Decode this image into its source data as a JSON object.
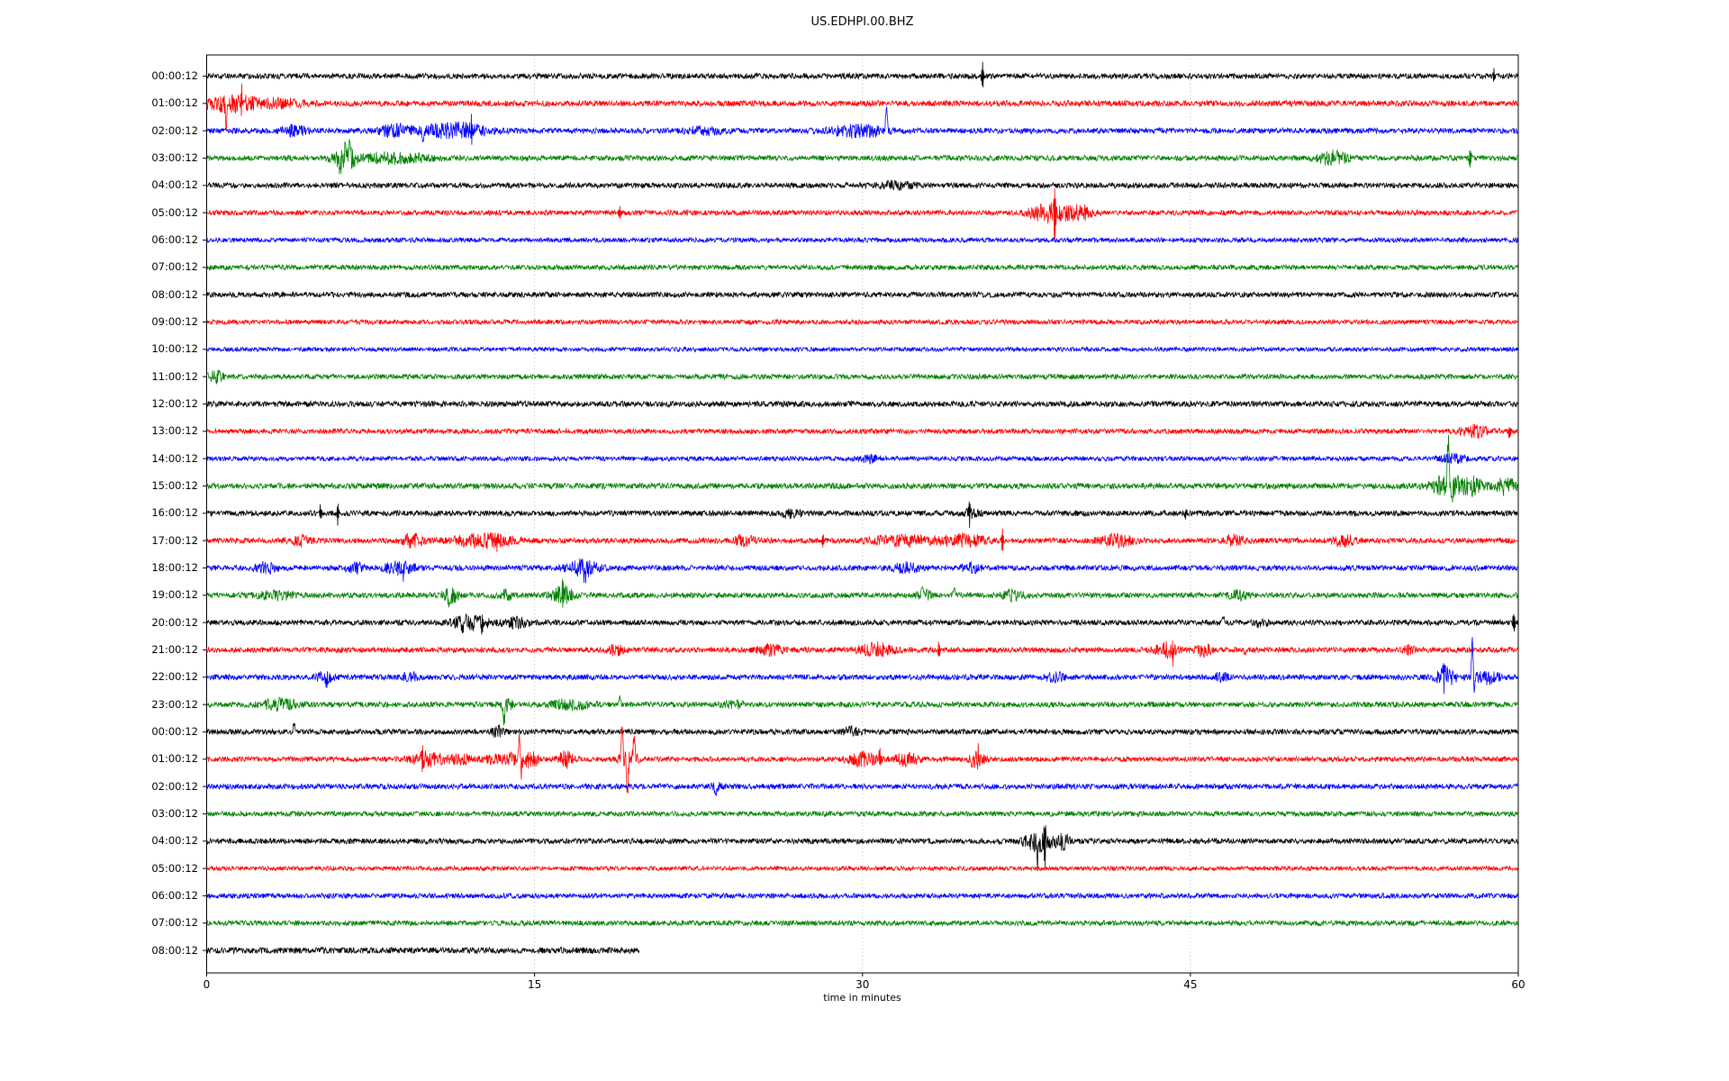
{
  "title": "US.EDHPI.00.BHZ",
  "chart_data": {
    "type": "line",
    "subtype": "seismogram-helicorder",
    "station_id": "US.EDHPI.00.BHZ",
    "xlabel": "time in minutes",
    "x_range": [
      0,
      60
    ],
    "x_ticks": [
      "0",
      "15",
      "30",
      "45",
      "60"
    ],
    "gridlines_at_minutes": [
      15,
      30,
      45
    ],
    "grid_style": "dotted-vertical",
    "row_interval_hours": 1,
    "color_cycle": [
      "#000000",
      "#ff0000",
      "#0000ff",
      "#008000"
    ],
    "traces": [
      {
        "label": "00:00:12",
        "color": "#000000",
        "noise": 3.0,
        "events": [
          {
            "k": "spike",
            "t": 35.5,
            "a": 15
          },
          {
            "k": "spike",
            "t": 58.9,
            "a": 7
          }
        ]
      },
      {
        "label": "01:00:12",
        "color": "#ff0000",
        "noise": 3.2,
        "events": [
          {
            "k": "burst",
            "t": 1.2,
            "w": 2.6,
            "a": 8
          },
          {
            "k": "spike",
            "t": 0.9,
            "a": 27,
            "d": -1
          },
          {
            "k": "spike",
            "t": 1.6,
            "a": 13
          },
          {
            "k": "spike",
            "t": 2.5,
            "a": 10
          },
          {
            "k": "burst",
            "t": 3.6,
            "w": 1.4,
            "a": 4
          }
        ]
      },
      {
        "label": "02:00:12",
        "color": "#0000ff",
        "noise": 3.0,
        "events": [
          {
            "k": "burst",
            "t": 4.0,
            "w": 1.0,
            "a": 5
          },
          {
            "k": "burst",
            "t": 8.6,
            "w": 1.2,
            "a": 7
          },
          {
            "k": "burst",
            "t": 11.3,
            "w": 2.6,
            "a": 8
          },
          {
            "k": "spike",
            "t": 9.9,
            "a": 15,
            "d": -1
          },
          {
            "k": "spike",
            "t": 12.1,
            "a": 13
          },
          {
            "k": "burst",
            "t": 22.8,
            "w": 1.4,
            "a": 4
          },
          {
            "k": "burst",
            "t": 29.8,
            "w": 2.2,
            "a": 6
          },
          {
            "k": "spike",
            "t": 31.1,
            "a": 30,
            "d": 1
          }
        ]
      },
      {
        "label": "03:00:12",
        "color": "#008000",
        "noise": 3.0,
        "events": [
          {
            "k": "burst",
            "t": 6.3,
            "w": 0.9,
            "a": 14
          },
          {
            "k": "spike",
            "t": 6.1,
            "a": 21,
            "d": -1
          },
          {
            "k": "spike",
            "t": 6.5,
            "a": 14,
            "d": 1
          },
          {
            "k": "burst",
            "t": 8.5,
            "w": 3.0,
            "a": 5
          },
          {
            "k": "burst",
            "t": 51.5,
            "w": 1.2,
            "a": 7
          },
          {
            "k": "spike",
            "t": 57.8,
            "a": 11
          }
        ]
      },
      {
        "label": "04:00:12",
        "color": "#000000",
        "noise": 3.0,
        "events": [
          {
            "k": "burst",
            "t": 31.5,
            "w": 1.5,
            "a": 3
          }
        ]
      },
      {
        "label": "05:00:12",
        "color": "#ff0000",
        "noise": 2.8,
        "events": [
          {
            "k": "spike",
            "t": 18.9,
            "a": 7
          },
          {
            "k": "burst",
            "t": 38.6,
            "w": 1.6,
            "a": 11
          },
          {
            "k": "spike",
            "t": 38.8,
            "a": 30
          },
          {
            "k": "burst",
            "t": 40.0,
            "w": 0.9,
            "a": 7
          }
        ]
      },
      {
        "label": "06:00:12",
        "color": "#0000ff",
        "noise": 2.6,
        "events": []
      },
      {
        "label": "07:00:12",
        "color": "#008000",
        "noise": 2.8,
        "events": []
      },
      {
        "label": "08:00:12",
        "color": "#000000",
        "noise": 3.0,
        "events": []
      },
      {
        "label": "09:00:12",
        "color": "#ff0000",
        "noise": 2.6,
        "events": []
      },
      {
        "label": "10:00:12",
        "color": "#0000ff",
        "noise": 2.4,
        "events": []
      },
      {
        "label": "11:00:12",
        "color": "#008000",
        "noise": 2.8,
        "events": [
          {
            "k": "burst",
            "t": 0.4,
            "w": 0.6,
            "a": 6
          }
        ]
      },
      {
        "label": "12:00:12",
        "color": "#000000",
        "noise": 3.2,
        "events": []
      },
      {
        "label": "13:00:12",
        "color": "#ff0000",
        "noise": 2.8,
        "events": [
          {
            "k": "burst",
            "t": 58.0,
            "w": 1.1,
            "a": 6
          },
          {
            "k": "spike",
            "t": 59.6,
            "a": 8
          }
        ]
      },
      {
        "label": "14:00:12",
        "color": "#0000ff",
        "noise": 2.6,
        "events": [
          {
            "k": "burst",
            "t": 30.3,
            "w": 0.8,
            "a": 4
          },
          {
            "k": "burst",
            "t": 57.0,
            "w": 1.0,
            "a": 4
          }
        ]
      },
      {
        "label": "15:00:12",
        "color": "#008000",
        "noise": 3.2,
        "events": [
          {
            "k": "burst",
            "t": 56.9,
            "w": 1.5,
            "a": 13
          },
          {
            "k": "spike",
            "t": 56.8,
            "a": 60,
            "d": 1
          },
          {
            "k": "spike",
            "t": 56.95,
            "a": 18,
            "d": -1
          },
          {
            "k": "burst",
            "t": 58.1,
            "w": 0.7,
            "a": 8
          },
          {
            "k": "burst",
            "t": 59.4,
            "w": 0.8,
            "a": 9
          }
        ]
      },
      {
        "label": "16:00:12",
        "color": "#000000",
        "noise": 3.0,
        "events": [
          {
            "k": "spike",
            "t": 5.2,
            "a": 10
          },
          {
            "k": "spike",
            "t": 6.0,
            "a": 12
          },
          {
            "k": "burst",
            "t": 26.7,
            "w": 0.8,
            "a": 4
          },
          {
            "k": "spike",
            "t": 34.9,
            "a": 10
          },
          {
            "k": "burst",
            "t": 35.0,
            "w": 0.7,
            "a": 4
          },
          {
            "k": "spike",
            "t": 44.8,
            "a": 6
          }
        ]
      },
      {
        "label": "17:00:12",
        "color": "#ff0000",
        "noise": 3.0,
        "events": [
          {
            "k": "burst",
            "t": 4.3,
            "w": 0.8,
            "a": 5
          },
          {
            "k": "burst",
            "t": 9.4,
            "w": 0.8,
            "a": 7
          },
          {
            "k": "burst",
            "t": 12.7,
            "w": 2.4,
            "a": 7
          },
          {
            "k": "spike",
            "t": 13.3,
            "a": 10
          },
          {
            "k": "burst",
            "t": 24.6,
            "w": 1.0,
            "a": 5
          },
          {
            "k": "spike",
            "t": 28.2,
            "a": 10
          },
          {
            "k": "burst",
            "t": 31.8,
            "w": 2.6,
            "a": 5
          },
          {
            "k": "burst",
            "t": 34.6,
            "w": 1.8,
            "a": 6
          },
          {
            "k": "spike",
            "t": 36.4,
            "a": 13
          },
          {
            "k": "burst",
            "t": 41.6,
            "w": 1.4,
            "a": 6
          },
          {
            "k": "burst",
            "t": 47.0,
            "w": 0.8,
            "a": 5
          },
          {
            "k": "burst",
            "t": 52.0,
            "w": 1.0,
            "a": 5
          }
        ]
      },
      {
        "label": "18:00:12",
        "color": "#0000ff",
        "noise": 3.0,
        "events": [
          {
            "k": "burst",
            "t": 2.7,
            "w": 0.8,
            "a": 6
          },
          {
            "k": "burst",
            "t": 6.8,
            "w": 0.8,
            "a": 5
          },
          {
            "k": "burst",
            "t": 8.8,
            "w": 1.2,
            "a": 7
          },
          {
            "k": "spike",
            "t": 9.0,
            "a": 9
          },
          {
            "k": "burst",
            "t": 17.2,
            "w": 1.2,
            "a": 9
          },
          {
            "k": "spike",
            "t": 17.3,
            "a": 11,
            "d": -1
          },
          {
            "k": "burst",
            "t": 32.0,
            "w": 1.0,
            "a": 5
          },
          {
            "k": "burst",
            "t": 35.0,
            "w": 0.8,
            "a": 4
          }
        ]
      },
      {
        "label": "19:00:12",
        "color": "#008000",
        "noise": 3.0,
        "events": [
          {
            "k": "burst",
            "t": 3.2,
            "w": 1.6,
            "a": 4
          },
          {
            "k": "burst",
            "t": 11.2,
            "w": 0.8,
            "a": 7
          },
          {
            "k": "spike",
            "t": 11.1,
            "a": 10,
            "d": -1
          },
          {
            "k": "burst",
            "t": 13.6,
            "w": 0.7,
            "a": 5
          },
          {
            "k": "burst",
            "t": 16.3,
            "w": 0.9,
            "a": 9
          },
          {
            "k": "spike",
            "t": 16.3,
            "a": 12
          },
          {
            "k": "burst",
            "t": 32.8,
            "w": 0.5,
            "a": 7
          },
          {
            "k": "spike",
            "t": 34.2,
            "a": 10,
            "d": 1
          },
          {
            "k": "burst",
            "t": 36.9,
            "w": 0.8,
            "a": 5
          },
          {
            "k": "burst",
            "t": 47.2,
            "w": 0.8,
            "a": 4
          }
        ]
      },
      {
        "label": "20:00:12",
        "color": "#000000",
        "noise": 3.0,
        "events": [
          {
            "k": "burst",
            "t": 12.1,
            "w": 1.6,
            "a": 7
          },
          {
            "k": "spike",
            "t": 11.7,
            "a": 12,
            "d": -1
          },
          {
            "k": "spike",
            "t": 12.6,
            "a": 10
          },
          {
            "k": "burst",
            "t": 14.2,
            "w": 1.0,
            "a": 5
          },
          {
            "k": "spike",
            "t": 46.5,
            "a": 8,
            "d": 1
          },
          {
            "k": "burst",
            "t": 48.2,
            "w": 0.5,
            "a": 4
          },
          {
            "k": "spike",
            "t": 59.8,
            "a": 13
          }
        ]
      },
      {
        "label": "21:00:12",
        "color": "#ff0000",
        "noise": 3.0,
        "events": [
          {
            "k": "burst",
            "t": 18.7,
            "w": 0.6,
            "a": 5
          },
          {
            "k": "burst",
            "t": 25.8,
            "w": 1.0,
            "a": 5
          },
          {
            "k": "burst",
            "t": 30.6,
            "w": 1.4,
            "a": 7
          },
          {
            "k": "spike",
            "t": 33.5,
            "a": 9
          },
          {
            "k": "burst",
            "t": 43.9,
            "w": 0.9,
            "a": 7
          },
          {
            "k": "spike",
            "t": 44.2,
            "a": 13
          },
          {
            "k": "burst",
            "t": 45.6,
            "w": 0.6,
            "a": 7
          },
          {
            "k": "spike",
            "t": 47.5,
            "a": 7,
            "d": -1
          },
          {
            "k": "burst",
            "t": 55.0,
            "w": 0.5,
            "a": 4
          }
        ]
      },
      {
        "label": "22:00:12",
        "color": "#0000ff",
        "noise": 3.0,
        "events": [
          {
            "k": "spike",
            "t": 5.5,
            "a": 9
          },
          {
            "k": "burst",
            "t": 5.4,
            "w": 0.7,
            "a": 5
          },
          {
            "k": "burst",
            "t": 9.3,
            "w": 0.5,
            "a": 5
          },
          {
            "k": "burst",
            "t": 38.8,
            "w": 0.8,
            "a": 4
          },
          {
            "k": "burst",
            "t": 46.4,
            "w": 0.5,
            "a": 4
          },
          {
            "k": "burst",
            "t": 56.7,
            "w": 0.8,
            "a": 9
          },
          {
            "k": "spike",
            "t": 56.6,
            "a": 13
          },
          {
            "k": "spike",
            "t": 57.9,
            "a": 45,
            "d": 1
          },
          {
            "k": "spike",
            "t": 57.98,
            "a": 13,
            "d": -1
          },
          {
            "k": "burst",
            "t": 58.6,
            "w": 1.0,
            "a": 6
          }
        ]
      },
      {
        "label": "23:00:12",
        "color": "#008000",
        "noise": 3.0,
        "events": [
          {
            "k": "burst",
            "t": 3.3,
            "w": 1.6,
            "a": 5
          },
          {
            "k": "spike",
            "t": 13.6,
            "a": 20,
            "d": -1
          },
          {
            "k": "burst",
            "t": 13.7,
            "w": 0.5,
            "a": 7
          },
          {
            "k": "burst",
            "t": 16.6,
            "w": 1.5,
            "a": 5
          },
          {
            "k": "spike",
            "t": 18.9,
            "a": 9,
            "d": 1
          },
          {
            "k": "burst",
            "t": 24.0,
            "w": 0.8,
            "a": 4
          }
        ]
      },
      {
        "label": "00:00:12",
        "color": "#000000",
        "noise": 3.0,
        "events": [
          {
            "k": "spike",
            "t": 4.0,
            "a": 10,
            "d": 1
          },
          {
            "k": "burst",
            "t": 13.3,
            "w": 0.4,
            "a": 6
          },
          {
            "k": "burst",
            "t": 29.5,
            "w": 0.6,
            "a": 5
          }
        ]
      },
      {
        "label": "01:00:12",
        "color": "#ff0000",
        "noise": 2.8,
        "events": [
          {
            "k": "burst",
            "t": 10.1,
            "w": 1.4,
            "a": 7
          },
          {
            "k": "spike",
            "t": 9.9,
            "a": 11
          },
          {
            "k": "burst",
            "t": 11.6,
            "w": 1.0,
            "a": 5
          },
          {
            "k": "burst",
            "t": 13.1,
            "w": 0.8,
            "a": 4
          },
          {
            "k": "burst",
            "t": 14.2,
            "w": 0.9,
            "a": 8
          },
          {
            "k": "spike",
            "t": 14.3,
            "a": 30,
            "d": 1
          },
          {
            "k": "spike",
            "t": 14.38,
            "a": 18,
            "d": -1
          },
          {
            "k": "burst",
            "t": 14.9,
            "w": 0.5,
            "a": 8
          },
          {
            "k": "burst",
            "t": 16.4,
            "w": 0.6,
            "a": 9
          },
          {
            "k": "spike",
            "t": 19.0,
            "a": 44,
            "d": 1
          },
          {
            "k": "spike",
            "t": 19.25,
            "a": 40,
            "d": -1
          },
          {
            "k": "spike",
            "t": 19.55,
            "a": 24,
            "d": 1
          },
          {
            "k": "burst",
            "t": 19.3,
            "w": 0.8,
            "a": 7
          },
          {
            "k": "burst",
            "t": 30.0,
            "w": 1.2,
            "a": 7
          },
          {
            "k": "spike",
            "t": 30.8,
            "a": 12
          },
          {
            "k": "burst",
            "t": 32.0,
            "w": 1.0,
            "a": 6
          },
          {
            "k": "burst",
            "t": 35.2,
            "w": 0.7,
            "a": 8
          },
          {
            "k": "spike",
            "t": 35.3,
            "a": 12
          }
        ]
      },
      {
        "label": "02:00:12",
        "color": "#0000ff",
        "noise": 3.0,
        "events": [
          {
            "k": "spike",
            "t": 23.3,
            "a": 14,
            "d": -1
          },
          {
            "k": "burst",
            "t": 23.3,
            "w": 0.4,
            "a": 5
          }
        ]
      },
      {
        "label": "03:00:12",
        "color": "#008000",
        "noise": 2.8,
        "events": []
      },
      {
        "label": "04:00:12",
        "color": "#000000",
        "noise": 3.0,
        "events": [
          {
            "k": "burst",
            "t": 38.1,
            "w": 1.2,
            "a": 12
          },
          {
            "k": "spike",
            "t": 38.0,
            "a": 22,
            "d": -1
          },
          {
            "k": "spike",
            "t": 38.35,
            "a": 20
          },
          {
            "k": "burst",
            "t": 39.2,
            "w": 0.5,
            "a": 7
          }
        ]
      },
      {
        "label": "05:00:12",
        "color": "#ff0000",
        "noise": 2.4,
        "events": []
      },
      {
        "label": "06:00:12",
        "color": "#0000ff",
        "noise": 2.8,
        "events": []
      },
      {
        "label": "07:00:12",
        "color": "#008000",
        "noise": 2.8,
        "events": []
      },
      {
        "label": "08:00:12",
        "color": "#000000",
        "noise": 3.4,
        "end": 19.8,
        "events": []
      }
    ]
  }
}
